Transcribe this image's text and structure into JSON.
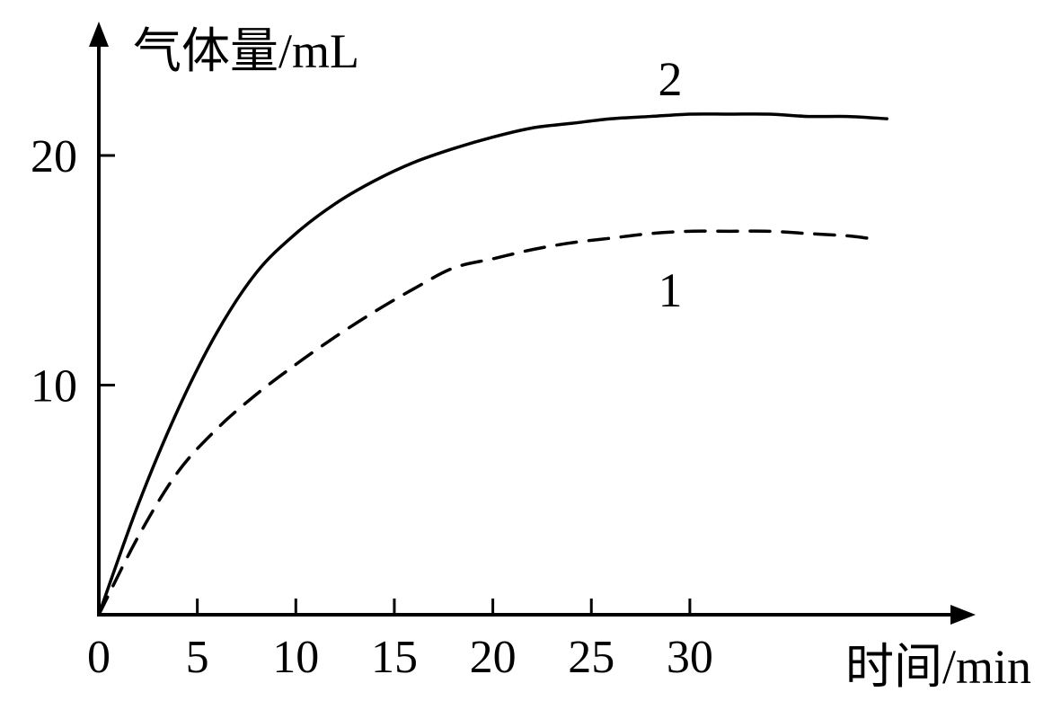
{
  "chart_data": {
    "type": "line",
    "xlabel": "时间/min",
    "ylabel": "气体量/mL",
    "xlim": [
      0,
      44
    ],
    "ylim": [
      0,
      25
    ],
    "x_ticks": [
      0,
      5,
      10,
      15,
      20,
      25,
      30
    ],
    "x_tick_labels": [
      "0",
      "5",
      "10",
      "15",
      "20",
      "25",
      "30"
    ],
    "y_ticks": [
      10,
      20
    ],
    "y_tick_labels": [
      "10",
      "20"
    ],
    "grid": false,
    "series": [
      {
        "name": "2",
        "line_style": "solid",
        "color": "#000000",
        "x": [
          0,
          2,
          4,
          6,
          8,
          10,
          12,
          14,
          16,
          18,
          20,
          22,
          24,
          26,
          28,
          30,
          32,
          34,
          36,
          38,
          40
        ],
        "y": [
          0,
          4.8,
          8.9,
          12.3,
          14.9,
          16.6,
          17.9,
          18.9,
          19.7,
          20.3,
          20.8,
          21.2,
          21.4,
          21.6,
          21.7,
          21.8,
          21.8,
          21.8,
          21.7,
          21.7,
          21.6
        ]
      },
      {
        "name": "1",
        "line_style": "dashed",
        "color": "#000000",
        "x": [
          0,
          2,
          4,
          6,
          8,
          10,
          12,
          14,
          16,
          18,
          20,
          22,
          24,
          26,
          28,
          30,
          32,
          34,
          36,
          38,
          39
        ],
        "y": [
          0,
          3.4,
          6.2,
          8.1,
          9.6,
          10.9,
          12.1,
          13.2,
          14.2,
          15.1,
          15.5,
          15.9,
          16.2,
          16.4,
          16.6,
          16.7,
          16.7,
          16.7,
          16.6,
          16.5,
          16.4
        ]
      }
    ]
  }
}
